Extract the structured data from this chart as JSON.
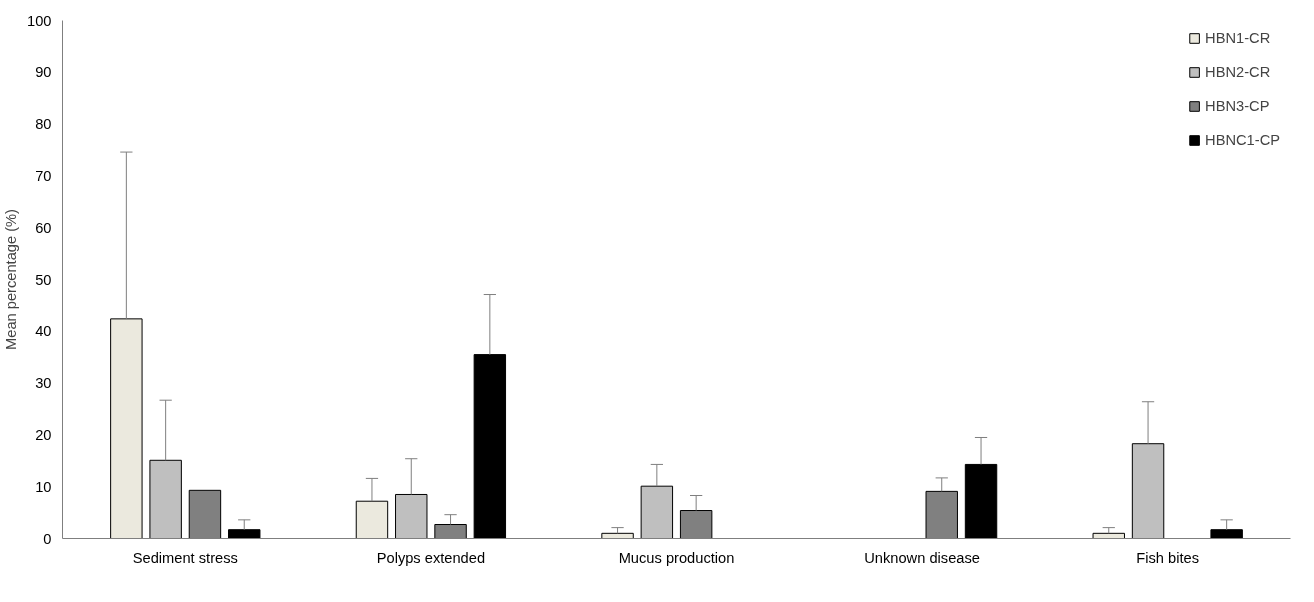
{
  "chart_data": {
    "type": "bar",
    "ylabel": "Mean percentage (%)",
    "categories": [
      "Sediment stress",
      "Polyps extended",
      "Mucus production",
      "Unknown disease",
      "Fish bites"
    ],
    "series": [
      {
        "name": "HBN1-CR",
        "color": "#ebe9de",
        "values": [
          42.4,
          7.2,
          1.0,
          null,
          1.0
        ],
        "errors": [
          [
            42.4,
            74.6
          ],
          [
            7.2,
            11.6
          ],
          [
            1.0,
            2.1
          ],
          null,
          [
            1.0,
            2.1
          ]
        ]
      },
      {
        "name": "HBN2-CR",
        "color": "#bfbfbf",
        "values": [
          15.1,
          8.5,
          10.1,
          null,
          18.3
        ],
        "errors": [
          [
            15.1,
            26.7
          ],
          [
            8.5,
            15.4
          ],
          [
            10.1,
            14.3
          ],
          null,
          [
            18.3,
            26.4
          ]
        ]
      },
      {
        "name": "HBN3-CP",
        "color": "#808080",
        "values": [
          9.3,
          2.7,
          5.4,
          9.1,
          null
        ],
        "errors": [
          null,
          [
            2.7,
            4.6
          ],
          [
            5.4,
            8.3
          ],
          [
            9.1,
            11.7
          ],
          null
        ]
      },
      {
        "name": "HBNC1-CP",
        "color": "#000000",
        "values": [
          1.7,
          35.5,
          null,
          14.3,
          1.7
        ],
        "errors": [
          [
            1.7,
            3.6
          ],
          [
            35.5,
            47.1
          ],
          null,
          [
            14.3,
            19.5
          ],
          [
            1.7,
            3.6
          ]
        ]
      }
    ],
    "ylim": [
      0,
      100
    ],
    "yticks": [
      0,
      10,
      20,
      30,
      40,
      50,
      60,
      70,
      80,
      90,
      100
    ],
    "grid": false,
    "legend": "top right"
  }
}
